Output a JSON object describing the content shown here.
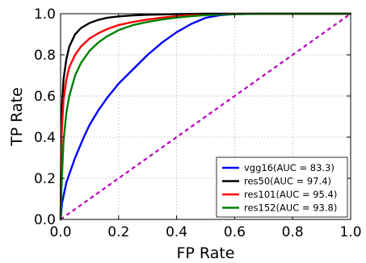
{
  "chart_data": {
    "type": "line",
    "title": "",
    "xlabel": "FP Rate",
    "ylabel": "TP Rate",
    "xlim": [
      0.0,
      1.0
    ],
    "ylim": [
      0.0,
      1.0
    ],
    "xticks": [
      "0.0",
      "0.2",
      "0.4",
      "0.6",
      "0.8",
      "1.0"
    ],
    "yticks": [
      "0.0",
      "0.2",
      "0.4",
      "0.6",
      "0.8",
      "1.0"
    ],
    "grid": true,
    "legend_position": "bottom-right",
    "diagonal": {
      "color": "#bf00bf",
      "style": "dashed"
    },
    "series": [
      {
        "name": "vgg16(AUC = 83.3)",
        "color": "#0000ff",
        "x": [
          0,
          0.005,
          0.02,
          0.05,
          0.08,
          0.1,
          0.13,
          0.16,
          0.2,
          0.25,
          0.3,
          0.35,
          0.4,
          0.45,
          0.5,
          0.55,
          0.6,
          0.7,
          0.8,
          0.9,
          1.0
        ],
        "y": [
          0,
          0.08,
          0.18,
          0.3,
          0.4,
          0.46,
          0.53,
          0.59,
          0.66,
          0.73,
          0.8,
          0.86,
          0.91,
          0.95,
          0.98,
          0.993,
          0.998,
          1.0,
          1.0,
          1.0,
          1.0
        ]
      },
      {
        "name": "res50(AUC = 97.4)",
        "color": "#000000",
        "x": [
          0,
          0.003,
          0.01,
          0.02,
          0.03,
          0.05,
          0.07,
          0.1,
          0.13,
          0.16,
          0.2,
          0.25,
          0.3,
          0.4,
          0.5,
          0.6,
          0.8,
          1.0
        ],
        "y": [
          0,
          0.5,
          0.68,
          0.78,
          0.84,
          0.9,
          0.93,
          0.955,
          0.97,
          0.98,
          0.987,
          0.992,
          0.995,
          0.998,
          1.0,
          1.0,
          1.0,
          1.0
        ]
      },
      {
        "name": "res101(AUC = 95.4)",
        "color": "#ff0000",
        "x": [
          0,
          0.003,
          0.01,
          0.02,
          0.03,
          0.05,
          0.07,
          0.1,
          0.13,
          0.16,
          0.2,
          0.25,
          0.3,
          0.35,
          0.4,
          0.45,
          0.5,
          0.6,
          0.7,
          0.8,
          1.0
        ],
        "y": [
          0,
          0.4,
          0.58,
          0.68,
          0.74,
          0.8,
          0.84,
          0.88,
          0.905,
          0.925,
          0.945,
          0.96,
          0.972,
          0.981,
          0.988,
          0.993,
          0.996,
          0.999,
          1.0,
          1.0,
          1.0
        ]
      },
      {
        "name": "res152(AUC = 93.8)",
        "color": "#008000",
        "x": [
          0,
          0.003,
          0.01,
          0.02,
          0.03,
          0.05,
          0.07,
          0.1,
          0.13,
          0.16,
          0.2,
          0.25,
          0.3,
          0.35,
          0.4,
          0.45,
          0.5,
          0.55,
          0.6,
          0.7,
          0.8,
          1.0
        ],
        "y": [
          0,
          0.15,
          0.38,
          0.52,
          0.6,
          0.7,
          0.76,
          0.82,
          0.86,
          0.89,
          0.92,
          0.945,
          0.96,
          0.972,
          0.981,
          0.988,
          0.993,
          0.996,
          0.998,
          1.0,
          1.0,
          1.0
        ]
      }
    ]
  }
}
